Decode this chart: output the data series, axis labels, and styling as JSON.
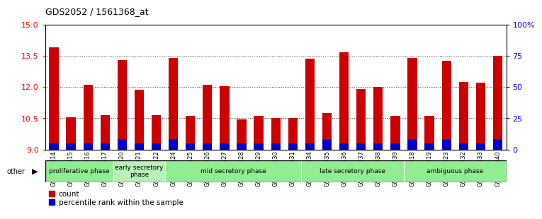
{
  "title": "GDS2052 / 1561368_at",
  "samples": [
    "GSM109814",
    "GSM109815",
    "GSM109816",
    "GSM109817",
    "GSM109820",
    "GSM109821",
    "GSM109822",
    "GSM109824",
    "GSM109825",
    "GSM109826",
    "GSM109827",
    "GSM109828",
    "GSM109829",
    "GSM109830",
    "GSM109831",
    "GSM109834",
    "GSM109835",
    "GSM109836",
    "GSM109837",
    "GSM109838",
    "GSM109839",
    "GSM109818",
    "GSM109819",
    "GSM109823",
    "GSM109832",
    "GSM109833",
    "GSM109840"
  ],
  "count_values": [
    13.9,
    10.55,
    12.1,
    10.65,
    13.3,
    11.85,
    10.65,
    13.4,
    10.6,
    12.1,
    12.05,
    10.45,
    10.6,
    10.5,
    10.5,
    13.35,
    10.75,
    13.65,
    11.9,
    12.0,
    10.6,
    13.4,
    10.6,
    13.25,
    12.25,
    12.2,
    13.5
  ],
  "percentile_right_values": [
    5,
    5,
    5,
    5,
    8,
    5,
    5,
    8,
    5,
    5,
    5,
    5,
    5,
    5,
    5,
    5,
    8,
    5,
    5,
    5,
    5,
    8,
    5,
    8,
    5,
    5,
    8
  ],
  "ylim_left": [
    9,
    15
  ],
  "ylim_right": [
    0,
    100
  ],
  "yticks_left": [
    9,
    10.5,
    12,
    13.5,
    15
  ],
  "yticks_right": [
    0,
    25,
    50,
    75,
    100
  ],
  "ytick_labels_right": [
    "0",
    "25",
    "50",
    "75",
    "100%"
  ],
  "bar_color_count": "#cc0000",
  "bar_color_percentile": "#0000cc",
  "bar_width": 0.55,
  "phases": [
    {
      "label": "proliferative phase",
      "start": 0,
      "end": 4,
      "color": "#90ee90"
    },
    {
      "label": "early secretory\nphase",
      "start": 4,
      "end": 7,
      "color": "#b8f0b8"
    },
    {
      "label": "mid secretory phase",
      "start": 7,
      "end": 15,
      "color": "#90ee90"
    },
    {
      "label": "late secretory phase",
      "start": 15,
      "end": 21,
      "color": "#90ee90"
    },
    {
      "label": "ambiguous phase",
      "start": 21,
      "end": 27,
      "color": "#90ee90"
    }
  ],
  "other_label": "other",
  "legend_count_label": "count",
  "legend_percentile_label": "percentile rank within the sample",
  "plot_bg": "#ffffff",
  "fig_bg": "#ffffff"
}
